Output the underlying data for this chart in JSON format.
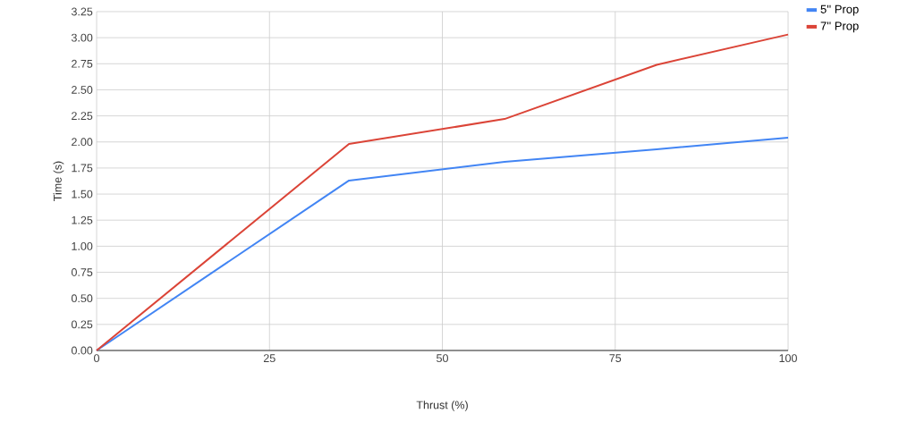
{
  "chart_data": {
    "type": "line",
    "xlabel": "Thrust (%)",
    "ylabel": "Time (s)",
    "xlim": [
      0,
      100
    ],
    "xticks": [
      0,
      25,
      50,
      75,
      100
    ],
    "ylim": [
      0,
      3.25
    ],
    "yticks": [
      {
        "value": 0,
        "label": "0.00"
      },
      0.25,
      {
        "value": 0.5,
        "label": "0.50"
      },
      0.75,
      {
        "value": 1,
        "label": "1.00"
      },
      1.25,
      {
        "value": 1.5,
        "label": "1.50"
      },
      1.75,
      {
        "value": 2,
        "label": "2.00"
      },
      2.25,
      {
        "value": 2.5,
        "label": "2.50"
      },
      2.75,
      {
        "value": 3,
        "label": "3.00"
      },
      3.25
    ],
    "x": [
      0,
      36.5,
      59,
      81,
      100
    ],
    "series": [
      {
        "name": "5'' Prop",
        "color": "#4285f4",
        "values": [
          0,
          1.63,
          1.81,
          1.93,
          2.04
        ]
      },
      {
        "name": "7'' Prop",
        "color": "#db4437",
        "values": [
          0,
          1.98,
          2.22,
          2.74,
          3.03
        ]
      }
    ],
    "grid": true,
    "legend": "top right",
    "marker": "none",
    "line_style": "solid"
  }
}
